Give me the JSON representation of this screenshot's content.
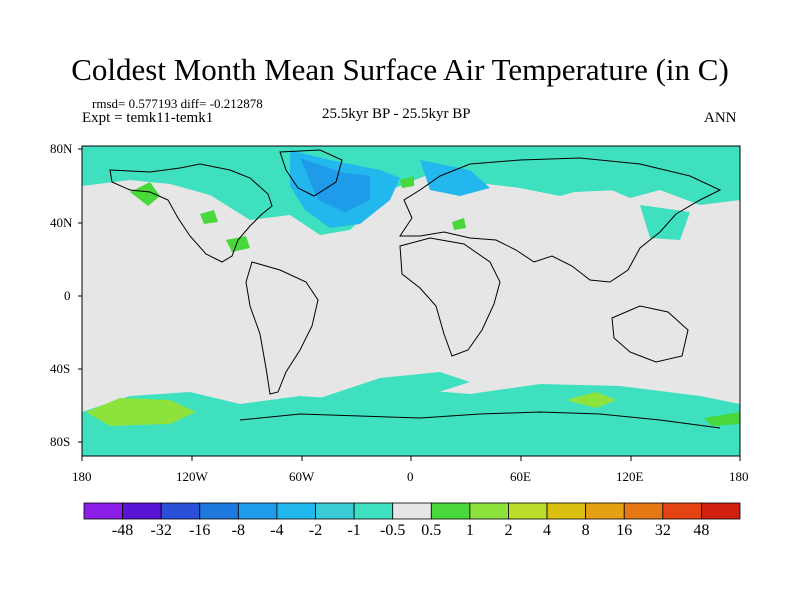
{
  "title": "Coldest Month Mean Surface Air Temperature (in C)",
  "stats_line": "rmsd= 0.577193 diff= -0.212878",
  "expt_line": "Expt = temk11-temk1",
  "center_label": "25.5kyr BP - 25.5kyr BP",
  "right_label": "ANN",
  "lat_ticks": [
    "80N",
    "40N",
    "0",
    "40S",
    "80S"
  ],
  "lon_ticks": [
    "180",
    "120W",
    "60W",
    "0",
    "60E",
    "120E",
    "180"
  ],
  "colorbar": {
    "labels": [
      "-48",
      "-32",
      "-16",
      "-8",
      "-4",
      "-2",
      "-1",
      "-0.5",
      "0.5",
      "1",
      "2",
      "4",
      "8",
      "16",
      "32",
      "48"
    ],
    "colors": [
      "#8a1ee6",
      "#5a14d6",
      "#2a4fd8",
      "#1e78de",
      "#1e9cea",
      "#22b8ee",
      "#38ccd6",
      "#3ee0c0",
      "#e6e6e6",
      "#48d83c",
      "#8ee23c",
      "#bcdc2c",
      "#dcc010",
      "#e6a014",
      "#e67814",
      "#e44412",
      "#d02010"
    ]
  },
  "colors": {
    "background_field": "#e6e6e6",
    "cold_light": "#3ee0c0",
    "cold_mid": "#22b8ee",
    "cold_dark": "#1e9cea",
    "warm_light": "#8ee23c",
    "warm_mid": "#48d83c"
  }
}
